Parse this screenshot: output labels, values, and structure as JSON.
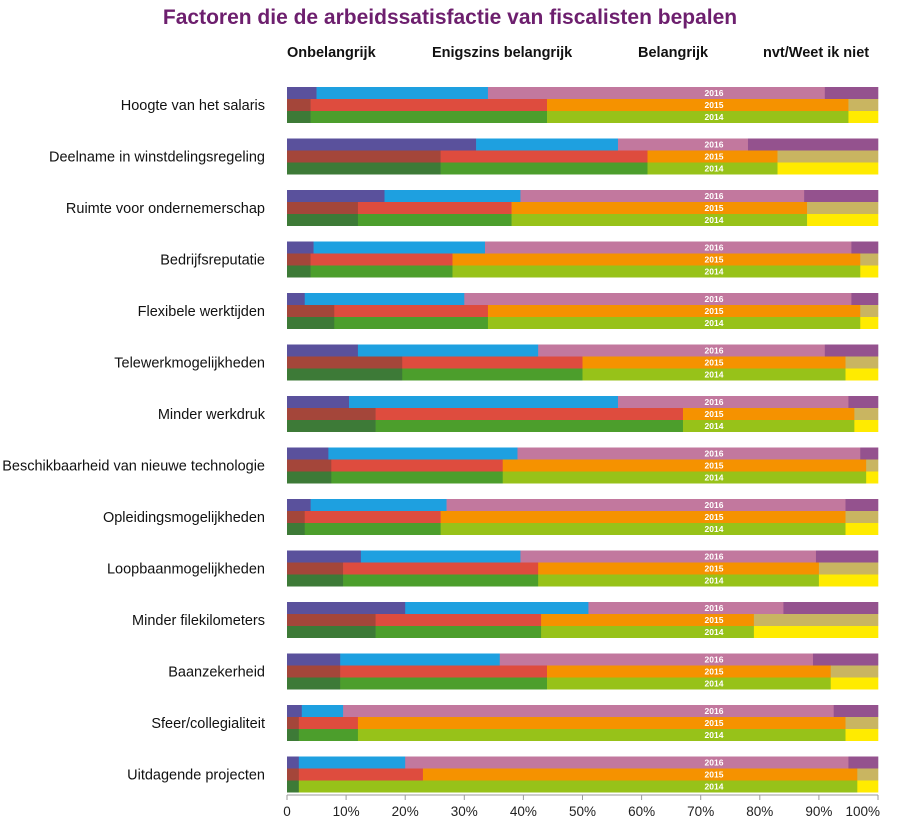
{
  "chart_data": {
    "type": "bar",
    "stacked": true,
    "orientation": "horizontal",
    "title": "Factoren die de arbeidssatisfactie van fiscalisten bepalen",
    "column_headers": [
      "Onbelangrijk",
      "Enigszins belangrijk",
      "Belangrijk",
      "nvt/Weet ik niet"
    ],
    "years": [
      "2016",
      "2015",
      "2014"
    ],
    "xlim": [
      0,
      100
    ],
    "x_ticks": [
      "0",
      "10%",
      "20%",
      "30%",
      "40%",
      "50%",
      "60%",
      "70%",
      "80%",
      "90%",
      "100%"
    ],
    "colors": {
      "2016": [
        "#5a519c",
        "#1ea0e0",
        "#c2789e",
        "#94528e"
      ],
      "2015": [
        "#a4463a",
        "#de4c3e",
        "#f59200",
        "#c9b561"
      ],
      "2014": [
        "#3d7a37",
        "#4c9e2c",
        "#97c219",
        "#ffeb00"
      ]
    },
    "categories": [
      "Hoogte van het salaris",
      "Deelname in winstdelingsregeling",
      "Ruimte voor ondernemerschap",
      "Bedrijfsreputatie",
      "Flexibele werktijden",
      "Telewerkmogelijkheden",
      "Minder werkdruk",
      "Beschikbaarheid van nieuwe technologie",
      "Opleidingsmogelijkheden",
      "Loopbaanmogelijkheden",
      "Minder filekilometers",
      "Baanzekerheid",
      "Sfeer/collegialiteit",
      "Uitdagende projecten"
    ],
    "series": {
      "2016": [
        [
          5,
          29,
          57,
          9
        ],
        [
          32,
          24,
          22,
          22
        ],
        [
          16.5,
          23,
          48,
          12.5
        ],
        [
          4.5,
          29,
          62,
          4.5
        ],
        [
          3,
          27,
          65.5,
          4.5
        ],
        [
          12,
          30.5,
          48.5,
          9
        ],
        [
          10.5,
          45.5,
          39,
          5
        ],
        [
          7,
          32,
          58,
          3
        ],
        [
          4,
          23,
          67.5,
          5.5
        ],
        [
          12.5,
          27,
          50,
          10.5
        ],
        [
          20,
          31,
          33,
          16
        ],
        [
          9,
          27,
          53,
          11
        ],
        [
          2.5,
          7,
          83,
          7.5
        ],
        [
          2,
          18,
          75,
          5
        ]
      ],
      "2015": [
        [
          4,
          40,
          51,
          5
        ],
        [
          26,
          35,
          22,
          17
        ],
        [
          12,
          26,
          50,
          12
        ],
        [
          4,
          24,
          69,
          3
        ],
        [
          8,
          26,
          63,
          3
        ],
        [
          19.5,
          30.5,
          44.5,
          5.5
        ],
        [
          15,
          52,
          29,
          4
        ],
        [
          7.5,
          29,
          61.5,
          2
        ],
        [
          3,
          23,
          68.5,
          5.5
        ],
        [
          9.5,
          33,
          47.5,
          10
        ],
        [
          15,
          28,
          36,
          21
        ],
        [
          9,
          35,
          48,
          8
        ],
        [
          2,
          10,
          82.5,
          5.5
        ],
        [
          2,
          21,
          73.5,
          3.5
        ]
      ],
      "2014": [
        [
          4,
          40,
          51,
          5
        ],
        [
          26,
          35,
          22,
          17
        ],
        [
          12,
          26,
          50,
          12
        ],
        [
          4,
          24,
          69,
          3
        ],
        [
          8,
          26,
          63,
          3
        ],
        [
          19.5,
          30.5,
          44.5,
          5.5
        ],
        [
          15,
          52,
          29,
          4
        ],
        [
          7.5,
          29,
          61.5,
          2
        ],
        [
          3,
          23,
          68.5,
          5.5
        ],
        [
          9.5,
          33,
          47.5,
          10
        ],
        [
          15,
          28,
          36,
          21
        ],
        [
          9,
          35,
          48,
          8
        ],
        [
          2,
          10,
          82.5,
          5.5
        ],
        [
          2,
          0,
          94.5,
          3.5
        ]
      ]
    }
  }
}
